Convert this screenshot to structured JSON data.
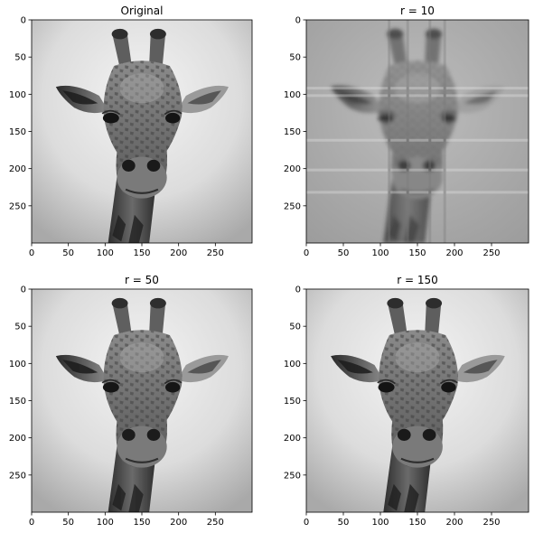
{
  "figure": {
    "background": "#ffffff",
    "colormap": "gray"
  },
  "chart_data": [
    {
      "type": "image",
      "title": "Original",
      "image_shape": [
        300,
        300
      ],
      "xticks": [
        0,
        50,
        100,
        150,
        200,
        250
      ],
      "yticks": [
        0,
        50,
        100,
        150,
        200,
        250
      ],
      "xlim": [
        0,
        300
      ],
      "ylim": [
        300,
        0
      ],
      "grid": false
    },
    {
      "type": "image",
      "title": "r = 10",
      "image_shape": [
        300,
        300
      ],
      "xticks": [
        0,
        50,
        100,
        150,
        200,
        250
      ],
      "yticks": [
        0,
        50,
        100,
        150,
        200,
        250
      ],
      "xlim": [
        0,
        300
      ],
      "ylim": [
        300,
        0
      ],
      "grid": false
    },
    {
      "type": "image",
      "title": "r = 50",
      "image_shape": [
        300,
        300
      ],
      "xticks": [
        0,
        50,
        100,
        150,
        200,
        250
      ],
      "yticks": [
        0,
        50,
        100,
        150,
        200,
        250
      ],
      "xlim": [
        0,
        300
      ],
      "ylim": [
        300,
        0
      ],
      "grid": false
    },
    {
      "type": "image",
      "title": "r = 150",
      "image_shape": [
        300,
        300
      ],
      "xticks": [
        0,
        50,
        100,
        150,
        200,
        250
      ],
      "yticks": [
        0,
        50,
        100,
        150,
        200,
        250
      ],
      "xlim": [
        0,
        300
      ],
      "ylim": [
        300,
        0
      ],
      "grid": false
    }
  ]
}
